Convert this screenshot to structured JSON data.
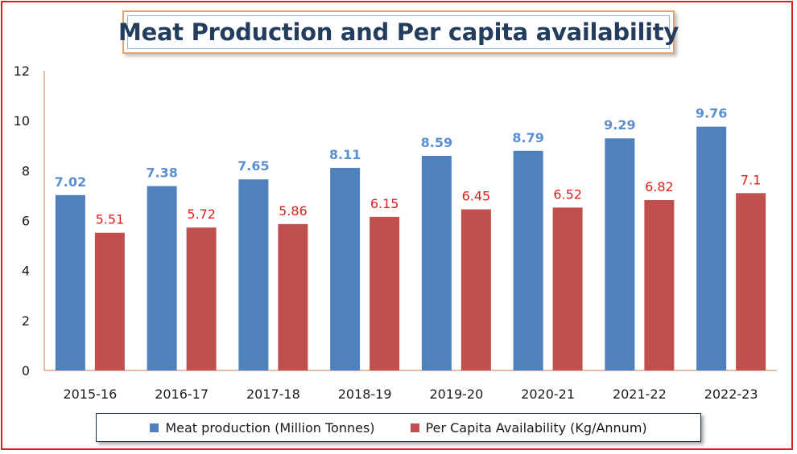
{
  "chart_data": {
    "type": "bar",
    "title": "Meat Production and Per capita availability",
    "categories": [
      "2015-16",
      "2016-17",
      "2017-18",
      "2018-19",
      "2019-20",
      "2020-21",
      "2021-22",
      "2022-23"
    ],
    "series": [
      {
        "name": "Meat production (Million Tonnes)",
        "color": "#4f81bd",
        "label_color": "#5b8fcf",
        "values": [
          7.02,
          7.38,
          7.65,
          8.11,
          8.59,
          8.79,
          9.29,
          9.76
        ],
        "labels": [
          "7.02",
          "7.38",
          "7.65",
          "8.11",
          "8.59",
          "8.79",
          "9.29",
          "9.76"
        ]
      },
      {
        "name": "Per Capita Availability (Kg/Annum)",
        "color": "#c0504d",
        "label_color": "#e01f1f",
        "values": [
          5.51,
          5.72,
          5.86,
          6.15,
          6.45,
          6.52,
          6.82,
          7.1
        ],
        "labels": [
          "5.51",
          "5.72",
          "5.86",
          "6.15",
          "6.45",
          "6.52",
          "6.82",
          "7.1"
        ]
      }
    ],
    "ylim": [
      0,
      12
    ],
    "yticks": [
      "0",
      "2",
      "4",
      "6",
      "8",
      "10",
      "12"
    ],
    "grid": false,
    "legend_position": "bottom",
    "xlabel": "",
    "ylabel": ""
  }
}
